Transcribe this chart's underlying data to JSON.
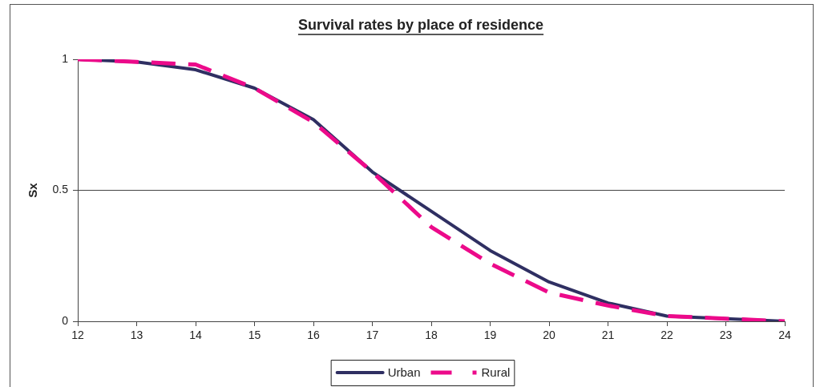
{
  "chart_data": {
    "type": "line",
    "title": "Survival rates by place of residence",
    "ylabel": "Sx",
    "x": [
      12,
      13,
      14,
      15,
      16,
      17,
      18,
      19,
      20,
      21,
      22,
      23,
      24
    ],
    "xlim": [
      12,
      24
    ],
    "xticks": [
      12,
      13,
      14,
      15,
      16,
      17,
      18,
      19,
      20,
      21,
      22,
      23,
      24
    ],
    "ylim": [
      0,
      1
    ],
    "yticks": [
      0,
      0.5,
      1
    ],
    "grid": "y",
    "legend": "bottom",
    "marker": "none",
    "series": [
      {
        "name": "Urban",
        "color": "#2f2f62",
        "line_style": "solid",
        "values": [
          1.0,
          0.99,
          0.96,
          0.89,
          0.77,
          0.57,
          0.42,
          0.27,
          0.15,
          0.07,
          0.02,
          0.01,
          0.0
        ]
      },
      {
        "name": "Rural",
        "color": "#ec0a8a",
        "line_style": "dashed",
        "values": [
          1.0,
          0.99,
          0.98,
          0.89,
          0.76,
          0.57,
          0.36,
          0.22,
          0.11,
          0.06,
          0.02,
          0.01,
          0.0
        ]
      }
    ]
  }
}
